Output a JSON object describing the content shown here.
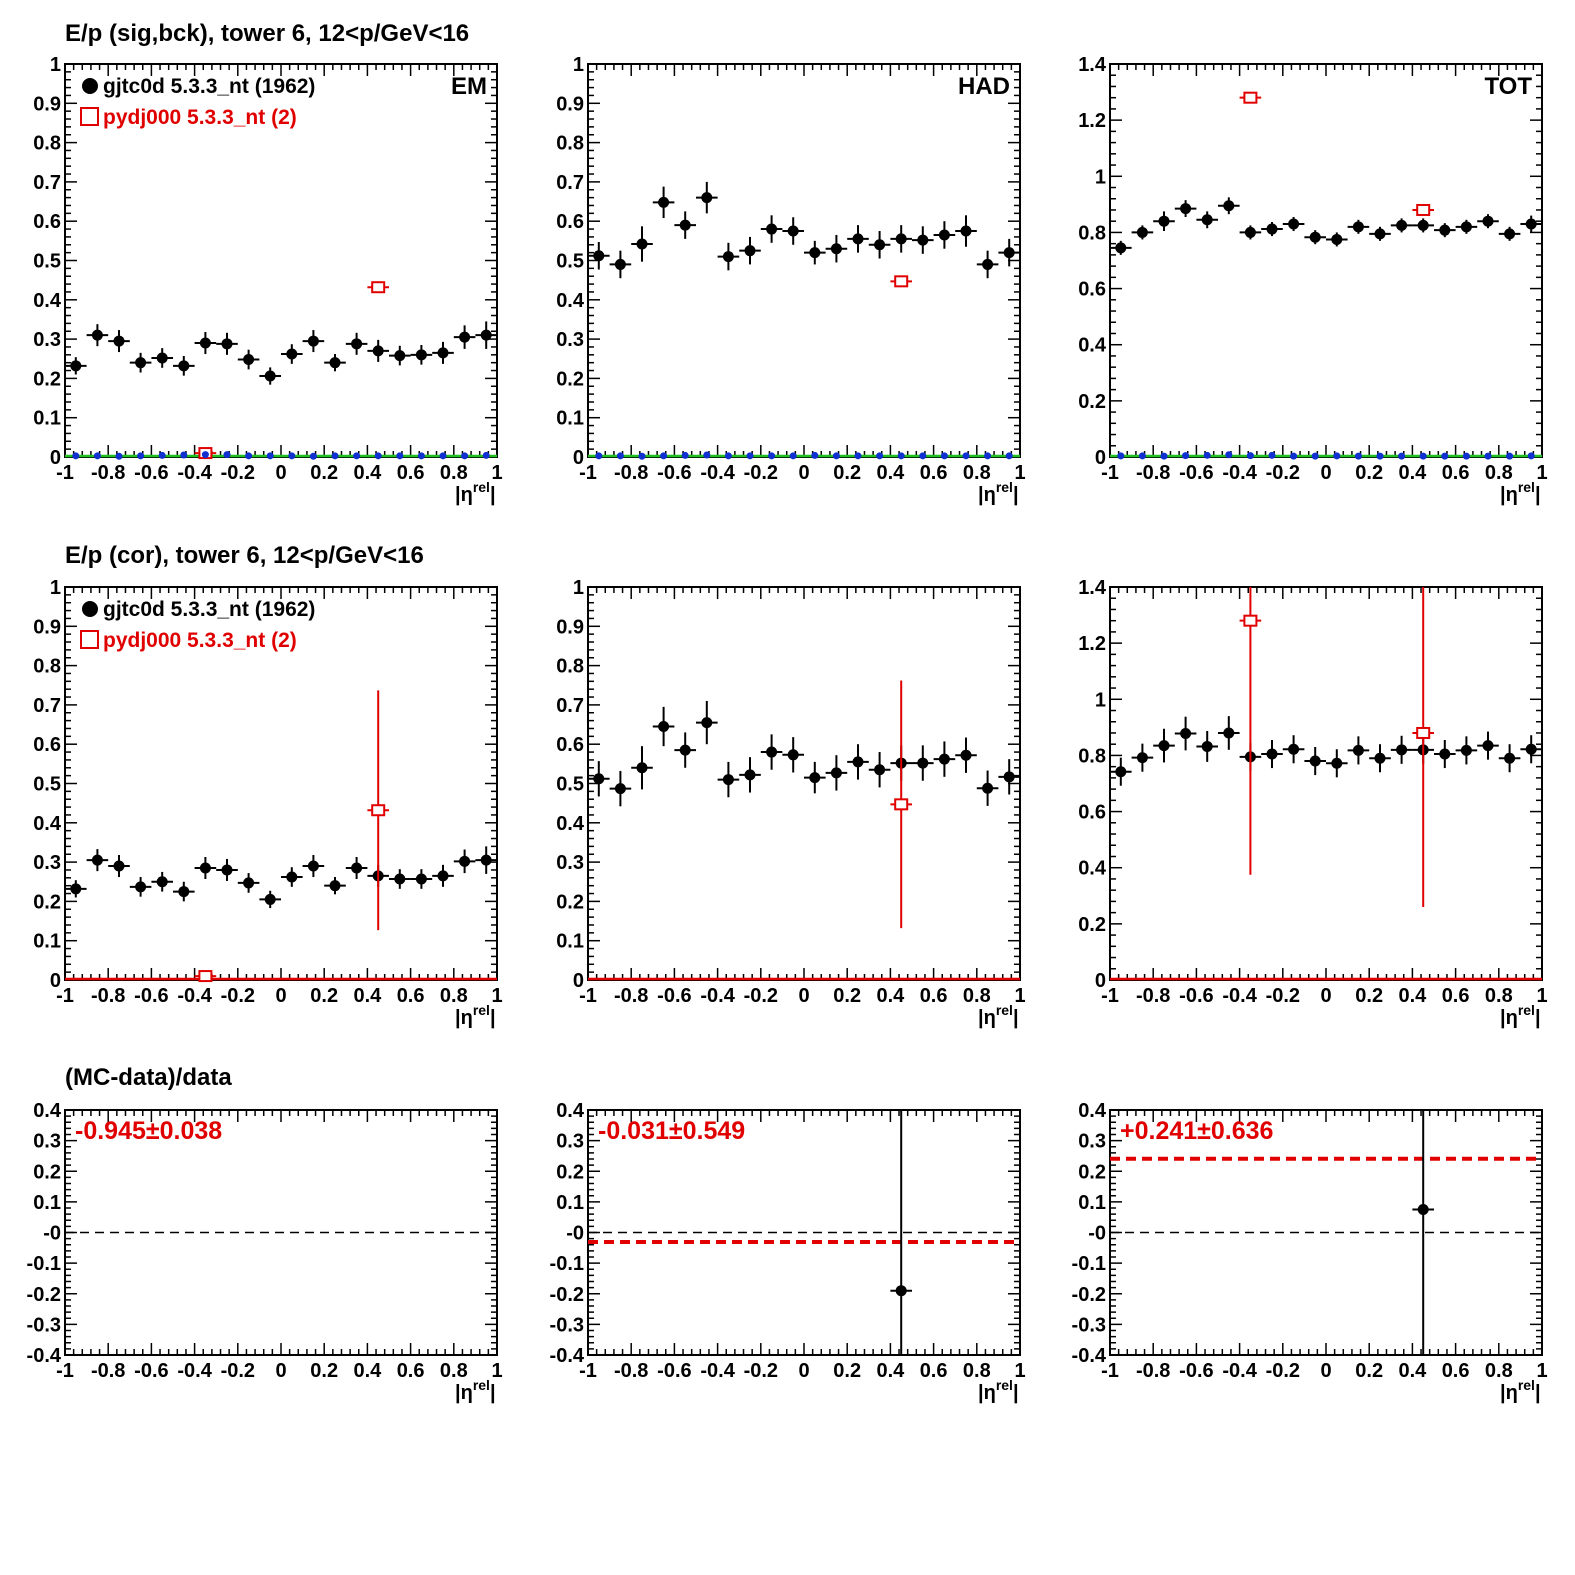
{
  "rows": [
    {
      "title": "E/p (sig,bck), tower 6, 12<p/GeV<16"
    },
    {
      "title": "E/p (cor), tower 6, 12<p/GeV<16"
    },
    {
      "title": "(MC-data)/data"
    }
  ],
  "legend": [
    {
      "label": "gjtc0d 5.3.3_nt (1962)",
      "color": "#000000",
      "marker": "filled-circle"
    },
    {
      "label": "pydj000 5.3.3_nt (2)",
      "color": "#e00000",
      "marker": "open-square"
    }
  ],
  "colors": {
    "data": "#000000",
    "mc": "#e00000",
    "background_markers": "#1030d0",
    "baseline_green": "#20c020",
    "fit_line": "#e00000"
  },
  "chart_data": [
    {
      "type": "scatter",
      "row": 0,
      "col": 0,
      "label": "EM",
      "xlabel": "|η^rel|",
      "xlim": [
        -1,
        1
      ],
      "ylim": [
        0,
        1
      ],
      "xticks": [
        "-1",
        "-0.8",
        "-0.6",
        "-0.4",
        "-0.2",
        "0",
        "0.2",
        "0.4",
        "0.6",
        "0.8",
        "1"
      ],
      "yticks": [
        "0",
        "0.1",
        "0.2",
        "0.3",
        "0.4",
        "0.5",
        "0.6",
        "0.7",
        "0.8",
        "0.9",
        "1"
      ],
      "series": [
        {
          "name": "gjtc0d 5.3.3_nt (1962)",
          "x": [
            -0.95,
            -0.85,
            -0.75,
            -0.65,
            -0.55,
            -0.45,
            -0.35,
            -0.25,
            -0.15,
            -0.05,
            0.05,
            0.15,
            0.25,
            0.35,
            0.45,
            0.55,
            0.65,
            0.75,
            0.85,
            0.95
          ],
          "y": [
            0.232,
            0.31,
            0.295,
            0.24,
            0.252,
            0.232,
            0.29,
            0.288,
            0.248,
            0.206,
            0.262,
            0.295,
            0.24,
            0.288,
            0.27,
            0.258,
            0.26,
            0.265,
            0.305,
            0.31
          ],
          "yerr": [
            0.022,
            0.028,
            0.028,
            0.025,
            0.025,
            0.025,
            0.028,
            0.028,
            0.025,
            0.022,
            0.025,
            0.028,
            0.022,
            0.028,
            0.028,
            0.025,
            0.025,
            0.028,
            0.03,
            0.035
          ]
        },
        {
          "name": "pydj000 5.3.3_nt (2)",
          "x": [
            -0.35,
            0.45
          ],
          "y": [
            0.01,
            0.432
          ],
          "yerr": [
            0,
            0
          ]
        },
        {
          "name": "background",
          "x": [
            -0.95,
            -0.85,
            -0.75,
            -0.65,
            -0.55,
            -0.45,
            -0.35,
            -0.25,
            -0.15,
            -0.05,
            0.05,
            0.15,
            0.25,
            0.35,
            0.45,
            0.55,
            0.65,
            0.75,
            0.85,
            0.95
          ],
          "y": [
            0.003,
            0.003,
            0.002,
            0.003,
            0.004,
            0.005,
            0.006,
            0.006,
            0.003,
            0.003,
            0.003,
            0.002,
            0.003,
            0.003,
            0.003,
            0.003,
            0.003,
            0.003,
            0.003,
            0.004
          ]
        }
      ]
    },
    {
      "type": "scatter",
      "row": 0,
      "col": 1,
      "label": "HAD",
      "xlabel": "|η^rel|",
      "xlim": [
        -1,
        1
      ],
      "ylim": [
        0,
        1
      ],
      "xticks": [
        "-1",
        "-0.8",
        "-0.6",
        "-0.4",
        "-0.2",
        "0",
        "0.2",
        "0.4",
        "0.6",
        "0.8",
        "1"
      ],
      "yticks": [
        "0",
        "0.1",
        "0.2",
        "0.3",
        "0.4",
        "0.5",
        "0.6",
        "0.7",
        "0.8",
        "0.9",
        "1"
      ],
      "series": [
        {
          "name": "gjtc0d 5.3.3_nt (1962)",
          "x": [
            -0.95,
            -0.85,
            -0.75,
            -0.65,
            -0.55,
            -0.45,
            -0.35,
            -0.25,
            -0.15,
            -0.05,
            0.05,
            0.15,
            0.25,
            0.35,
            0.45,
            0.55,
            0.65,
            0.75,
            0.85,
            0.95
          ],
          "y": [
            0.512,
            0.49,
            0.542,
            0.648,
            0.59,
            0.66,
            0.51,
            0.525,
            0.58,
            0.575,
            0.52,
            0.53,
            0.555,
            0.54,
            0.555,
            0.552,
            0.565,
            0.575,
            0.49,
            0.52
          ],
          "yerr": [
            0.035,
            0.035,
            0.045,
            0.04,
            0.035,
            0.04,
            0.035,
            0.035,
            0.035,
            0.035,
            0.03,
            0.035,
            0.035,
            0.035,
            0.035,
            0.035,
            0.035,
            0.04,
            0.035,
            0.035
          ]
        },
        {
          "name": "pydj000 5.3.3_nt (2)",
          "x": [
            0.45
          ],
          "y": [
            0.447
          ],
          "yerr": [
            0
          ]
        },
        {
          "name": "background",
          "x": [
            -0.95,
            -0.85,
            -0.75,
            -0.65,
            -0.55,
            -0.45,
            -0.35,
            -0.25,
            -0.15,
            -0.05,
            0.05,
            0.15,
            0.25,
            0.35,
            0.45,
            0.55,
            0.65,
            0.75,
            0.85,
            0.95
          ],
          "y": [
            0.003,
            0.003,
            0.002,
            0.003,
            0.004,
            0.005,
            0.003,
            0.003,
            0.003,
            0.003,
            0.004,
            0.003,
            0.003,
            0.003,
            0.003,
            0.003,
            0.003,
            0.003,
            0.003,
            0.003
          ]
        }
      ]
    },
    {
      "type": "scatter",
      "row": 0,
      "col": 2,
      "label": "TOT",
      "xlabel": "|η^rel|",
      "xlim": [
        -1,
        1
      ],
      "ylim": [
        0,
        1.4
      ],
      "xticks": [
        "-1",
        "-0.8",
        "-0.6",
        "-0.4",
        "-0.2",
        "0",
        "0.2",
        "0.4",
        "0.6",
        "0.8",
        "1"
      ],
      "yticks": [
        "0",
        "0.2",
        "0.4",
        "0.6",
        "0.8",
        "1",
        "1.2",
        "1.4"
      ],
      "series": [
        {
          "name": "gjtc0d 5.3.3_nt (1962)",
          "x": [
            -0.95,
            -0.85,
            -0.75,
            -0.65,
            -0.55,
            -0.45,
            -0.35,
            -0.25,
            -0.15,
            -0.05,
            0.05,
            0.15,
            0.25,
            0.35,
            0.45,
            0.55,
            0.65,
            0.75,
            0.85,
            0.95
          ],
          "y": [
            0.745,
            0.8,
            0.84,
            0.885,
            0.845,
            0.895,
            0.8,
            0.812,
            0.83,
            0.783,
            0.775,
            0.82,
            0.795,
            0.825,
            0.825,
            0.808,
            0.82,
            0.84,
            0.795,
            0.83
          ],
          "yerr": [
            0.025,
            0.025,
            0.035,
            0.03,
            0.03,
            0.03,
            0.025,
            0.025,
            0.025,
            0.025,
            0.025,
            0.025,
            0.025,
            0.025,
            0.025,
            0.025,
            0.025,
            0.025,
            0.025,
            0.03
          ]
        },
        {
          "name": "pydj000 5.3.3_nt (2)",
          "x": [
            -0.35,
            0.45
          ],
          "y": [
            1.28,
            0.88
          ],
          "yerr": [
            0,
            0
          ]
        },
        {
          "name": "background",
          "x": [
            -0.95,
            -0.85,
            -0.75,
            -0.65,
            -0.55,
            -0.45,
            -0.35,
            -0.25,
            -0.15,
            -0.05,
            0.05,
            0.15,
            0.25,
            0.35,
            0.45,
            0.55,
            0.65,
            0.75,
            0.85,
            0.95
          ],
          "y": [
            0.004,
            0.004,
            0.003,
            0.005,
            0.006,
            0.008,
            0.005,
            0.006,
            0.003,
            0.003,
            0.004,
            0.003,
            0.003,
            0.003,
            0.003,
            0.003,
            0.003,
            0.003,
            0.003,
            0.004
          ]
        }
      ]
    },
    {
      "type": "scatter",
      "row": 1,
      "col": 0,
      "xlabel": "|η^rel|",
      "xlim": [
        -1,
        1
      ],
      "ylim": [
        0,
        1
      ],
      "xticks": [
        "-1",
        "-0.8",
        "-0.6",
        "-0.4",
        "-0.2",
        "0",
        "0.2",
        "0.4",
        "0.6",
        "0.8",
        "1"
      ],
      "yticks": [
        "0",
        "0.1",
        "0.2",
        "0.3",
        "0.4",
        "0.5",
        "0.6",
        "0.7",
        "0.8",
        "0.9",
        "1"
      ],
      "series": [
        {
          "name": "gjtc0d 5.3.3_nt (1962)",
          "x": [
            -0.95,
            -0.85,
            -0.75,
            -0.65,
            -0.55,
            -0.45,
            -0.35,
            -0.25,
            -0.15,
            -0.05,
            0.05,
            0.15,
            0.25,
            0.35,
            0.45,
            0.55,
            0.65,
            0.75,
            0.85,
            0.95
          ],
          "y": [
            0.232,
            0.305,
            0.29,
            0.237,
            0.25,
            0.225,
            0.285,
            0.28,
            0.247,
            0.205,
            0.262,
            0.29,
            0.24,
            0.285,
            0.265,
            0.257,
            0.257,
            0.265,
            0.302,
            0.305
          ],
          "yerr": [
            0.022,
            0.028,
            0.028,
            0.025,
            0.025,
            0.025,
            0.028,
            0.028,
            0.025,
            0.022,
            0.025,
            0.028,
            0.022,
            0.028,
            0.028,
            0.025,
            0.025,
            0.028,
            0.03,
            0.035
          ]
        },
        {
          "name": "pydj000 5.3.3_nt (2)",
          "x": [
            -0.35,
            0.45
          ],
          "y": [
            0.01,
            0.432
          ],
          "yerr": [
            0,
            0.305
          ]
        }
      ]
    },
    {
      "type": "scatter",
      "row": 1,
      "col": 1,
      "xlabel": "|η^rel|",
      "xlim": [
        -1,
        1
      ],
      "ylim": [
        0,
        1
      ],
      "xticks": [
        "-1",
        "-0.8",
        "-0.6",
        "-0.4",
        "-0.2",
        "0",
        "0.2",
        "0.4",
        "0.6",
        "0.8",
        "1"
      ],
      "yticks": [
        "0",
        "0.1",
        "0.2",
        "0.3",
        "0.4",
        "0.5",
        "0.6",
        "0.7",
        "0.8",
        "0.9",
        "1"
      ],
      "series": [
        {
          "name": "gjtc0d 5.3.3_nt (1962)",
          "x": [
            -0.95,
            -0.85,
            -0.75,
            -0.65,
            -0.55,
            -0.45,
            -0.35,
            -0.25,
            -0.15,
            -0.05,
            0.05,
            0.15,
            0.25,
            0.35,
            0.45,
            0.55,
            0.65,
            0.75,
            0.85,
            0.95
          ],
          "y": [
            0.512,
            0.487,
            0.54,
            0.645,
            0.585,
            0.655,
            0.51,
            0.522,
            0.58,
            0.573,
            0.515,
            0.527,
            0.555,
            0.535,
            0.552,
            0.552,
            0.562,
            0.572,
            0.488,
            0.517
          ],
          "yerr": [
            0.045,
            0.045,
            0.055,
            0.05,
            0.045,
            0.055,
            0.045,
            0.045,
            0.045,
            0.045,
            0.04,
            0.045,
            0.045,
            0.045,
            0.045,
            0.045,
            0.045,
            0.045,
            0.045,
            0.045
          ]
        },
        {
          "name": "pydj000 5.3.3_nt (2)",
          "x": [
            0.45
          ],
          "y": [
            0.447
          ],
          "yerr": [
            0.315
          ]
        }
      ]
    },
    {
      "type": "scatter",
      "row": 1,
      "col": 2,
      "xlabel": "|η^rel|",
      "xlim": [
        -1,
        1
      ],
      "ylim": [
        0,
        1.4
      ],
      "xticks": [
        "-1",
        "-0.8",
        "-0.6",
        "-0.4",
        "-0.2",
        "0",
        "0.2",
        "0.4",
        "0.6",
        "0.8",
        "1"
      ],
      "yticks": [
        "0",
        "0.2",
        "0.4",
        "0.6",
        "0.8",
        "1",
        "1.2",
        "1.4"
      ],
      "series": [
        {
          "name": "gjtc0d 5.3.3_nt (1962)",
          "x": [
            -0.95,
            -0.85,
            -0.75,
            -0.65,
            -0.55,
            -0.45,
            -0.35,
            -0.25,
            -0.15,
            -0.05,
            0.05,
            0.15,
            0.25,
            0.35,
            0.45,
            0.55,
            0.65,
            0.75,
            0.85,
            0.95
          ],
          "y": [
            0.742,
            0.792,
            0.835,
            0.878,
            0.832,
            0.88,
            0.795,
            0.805,
            0.822,
            0.78,
            0.772,
            0.818,
            0.79,
            0.82,
            0.82,
            0.805,
            0.818,
            0.835,
            0.79,
            0.822
          ],
          "yerr": [
            0.05,
            0.05,
            0.06,
            0.06,
            0.055,
            0.06,
            0.05,
            0.05,
            0.05,
            0.05,
            0.05,
            0.05,
            0.05,
            0.05,
            0.05,
            0.05,
            0.05,
            0.05,
            0.05,
            0.05
          ]
        },
        {
          "name": "pydj000 5.3.3_nt (2)",
          "x": [
            -0.35,
            0.45
          ],
          "y": [
            1.28,
            0.88
          ],
          "yerr": [
            0.905,
            0.62
          ]
        }
      ]
    },
    {
      "type": "scatter",
      "row": 2,
      "col": 0,
      "annotation": "-0.945±0.038",
      "fit": -0.945,
      "xlabel": "|η^rel|",
      "xlim": [
        -1,
        1
      ],
      "ylim": [
        -0.4,
        0.4
      ],
      "xticks": [
        "-1",
        "-0.8",
        "-0.6",
        "-0.4",
        "-0.2",
        "0",
        "0.2",
        "0.4",
        "0.6",
        "0.8",
        "1"
      ],
      "yticks": [
        "-0.4",
        "-0.3",
        "-0.2",
        "-0.1",
        "-0",
        "0.1",
        "0.2",
        "0.3",
        "0.4"
      ],
      "series": []
    },
    {
      "type": "scatter",
      "row": 2,
      "col": 1,
      "annotation": "-0.031±0.549",
      "fit": -0.031,
      "xlabel": "|η^rel|",
      "xlim": [
        -1,
        1
      ],
      "ylim": [
        -0.4,
        0.4
      ],
      "xticks": [
        "-1",
        "-0.8",
        "-0.6",
        "-0.4",
        "-0.2",
        "0",
        "0.2",
        "0.4",
        "0.6",
        "0.8",
        "1"
      ],
      "yticks": [
        "-0.4",
        "-0.3",
        "-0.2",
        "-0.1",
        "-0",
        "0.1",
        "0.2",
        "0.3",
        "0.4"
      ],
      "series": [
        {
          "name": "ratio",
          "x": [
            0.45
          ],
          "y": [
            -0.19
          ],
          "yerr": [
            0.7
          ]
        }
      ]
    },
    {
      "type": "scatter",
      "row": 2,
      "col": 2,
      "annotation": "+0.241±0.636",
      "fit": 0.241,
      "xlabel": "|η^rel|",
      "xlim": [
        -1,
        1
      ],
      "ylim": [
        -0.4,
        0.4
      ],
      "xticks": [
        "-1",
        "-0.8",
        "-0.6",
        "-0.4",
        "-0.2",
        "0",
        "0.2",
        "0.4",
        "0.6",
        "0.8",
        "1"
      ],
      "yticks": [
        "-0.4",
        "-0.3",
        "-0.2",
        "-0.1",
        "-0",
        "0.1",
        "0.2",
        "0.3",
        "0.4"
      ],
      "series": [
        {
          "name": "ratio",
          "x": [
            0.45
          ],
          "y": [
            0.075
          ],
          "yerr": [
            0.7
          ]
        }
      ]
    }
  ]
}
